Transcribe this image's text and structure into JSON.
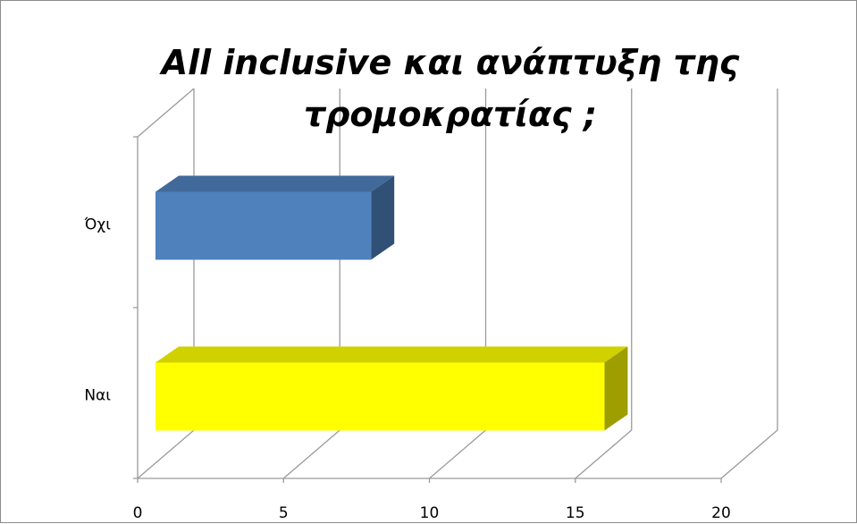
{
  "chart_data": {
    "type": "bar",
    "orientation": "horizontal",
    "style": "3d",
    "title_lines": [
      "All inclusive και ανάπτυξη της",
      "τρομοκρατίας ;"
    ],
    "categories": [
      "Ναι",
      "Όχι"
    ],
    "values": [
      16,
      8
    ],
    "colors": [
      "#FFFF00",
      "#4F81BD"
    ],
    "xlim": [
      0,
      20
    ],
    "xticks": [
      "0",
      "5",
      "10",
      "15",
      "20"
    ],
    "grid": true,
    "legend": "none"
  }
}
